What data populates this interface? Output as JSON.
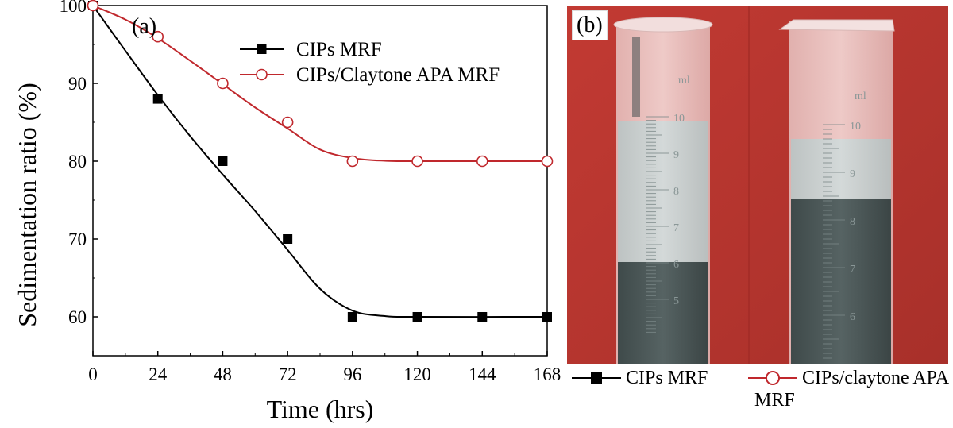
{
  "chart_data": {
    "type": "line",
    "panel_label": "(a)",
    "xlabel": "Time (hrs)",
    "ylabel": "Sedimentation ratio (%)",
    "xlim": [
      0,
      168
    ],
    "ylim": [
      55,
      100
    ],
    "x_ticks": [
      0,
      24,
      48,
      72,
      96,
      120,
      144,
      168
    ],
    "y_ticks": [
      60,
      70,
      80,
      90,
      100
    ],
    "legend_position": "top-right",
    "series": [
      {
        "name": "CIPs MRF",
        "marker": "filled-square",
        "color": "#000000",
        "x": [
          0,
          24,
          48,
          72,
          96,
          120,
          144,
          168
        ],
        "y": [
          100,
          88,
          80,
          70,
          60,
          60,
          60,
          60
        ],
        "fit": [
          [
            0,
            100
          ],
          [
            12,
            94.2
          ],
          [
            24,
            88.5
          ],
          [
            36,
            83.2
          ],
          [
            48,
            78.3
          ],
          [
            60,
            73.6
          ],
          [
            72,
            68.6
          ],
          [
            84,
            63.6
          ],
          [
            96,
            60.8
          ],
          [
            108,
            60.1
          ],
          [
            120,
            60
          ],
          [
            168,
            60
          ]
        ]
      },
      {
        "name": "CIPs/Claytone APA MRF",
        "marker": "open-circle",
        "color": "#c0282d",
        "x": [
          0,
          24,
          48,
          72,
          96,
          120,
          144,
          168
        ],
        "y": [
          100,
          96,
          90,
          85,
          80,
          80,
          80,
          80
        ],
        "fit": [
          [
            0,
            100
          ],
          [
            12,
            98.2
          ],
          [
            24,
            95.8
          ],
          [
            36,
            92.9
          ],
          [
            48,
            89.9
          ],
          [
            60,
            86.9
          ],
          [
            72,
            84.2
          ],
          [
            84,
            81.5
          ],
          [
            96,
            80.4
          ],
          [
            108,
            80.05
          ],
          [
            120,
            80
          ],
          [
            168,
            80
          ]
        ]
      }
    ]
  },
  "photo_panel": {
    "label": "(b)",
    "legend": [
      {
        "name": "CIPs MRF",
        "marker": "filled-square",
        "color": "#000000"
      },
      {
        "name_line1": "CIPs/claytone APA",
        "name_line2": "MRF",
        "marker": "open-circle",
        "color": "#c0282d"
      }
    ],
    "cylinder_scale_left": [
      "10",
      "9",
      "8",
      "7",
      "6",
      "5"
    ],
    "cylinder_scale_right": [
      "10",
      "9",
      "8",
      "7",
      "6"
    ],
    "cylinder_unit": "ml"
  }
}
